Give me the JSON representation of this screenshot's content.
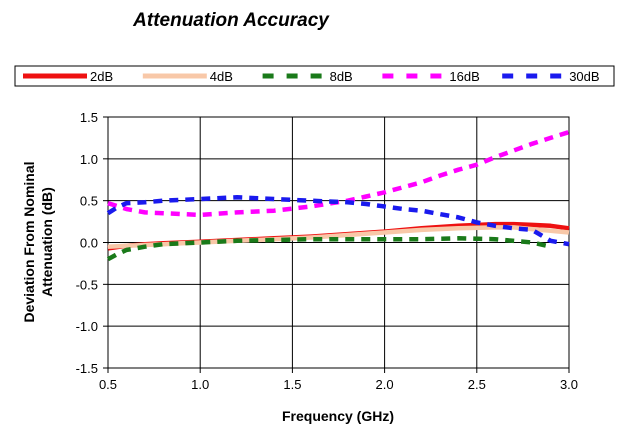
{
  "chart_data": {
    "type": "line",
    "title": "Attenuation Accuracy",
    "xlabel": "Frequency (GHz)",
    "ylabel_lines": [
      "Deviation From Nominal",
      "Attenuation (dB)"
    ],
    "xlim": [
      0.5,
      3.0
    ],
    "ylim": [
      -1.5,
      1.5
    ],
    "x_ticks": [
      "0.5",
      "1.0",
      "1.5",
      "2.0",
      "2.5",
      "3.0"
    ],
    "y_ticks": [
      "1.5",
      "1.0",
      "0.5",
      "0.0",
      "-0.5",
      "-1.0",
      "-1.5"
    ],
    "grid": true,
    "legend_position": "top",
    "series": [
      {
        "name": "2dB",
        "color": "#ee1111",
        "dash": "solid",
        "x": [
          0.5,
          0.6,
          0.7,
          0.8,
          0.9,
          1.0,
          1.2,
          1.4,
          1.6,
          1.8,
          2.0,
          2.2,
          2.4,
          2.6,
          2.7,
          2.8,
          2.9,
          3.0
        ],
        "y": [
          -0.07,
          -0.04,
          -0.02,
          -0.01,
          0.0,
          0.01,
          0.03,
          0.05,
          0.07,
          0.1,
          0.13,
          0.17,
          0.2,
          0.22,
          0.22,
          0.21,
          0.2,
          0.17
        ]
      },
      {
        "name": "4dB",
        "color": "#f8c8a8",
        "dash": "solid",
        "x": [
          0.5,
          0.6,
          0.7,
          0.8,
          0.9,
          1.0,
          1.2,
          1.4,
          1.6,
          1.8,
          2.0,
          2.2,
          2.4,
          2.6,
          2.7,
          2.8,
          2.9,
          3.0
        ],
        "y": [
          -0.05,
          -0.04,
          -0.03,
          -0.02,
          -0.01,
          0.0,
          0.02,
          0.04,
          0.06,
          0.09,
          0.12,
          0.15,
          0.17,
          0.18,
          0.18,
          0.16,
          0.14,
          0.12
        ]
      },
      {
        "name": "8dB",
        "color": "#1a7a1a",
        "dash": "dashed",
        "x": [
          0.5,
          0.55,
          0.6,
          0.7,
          0.8,
          1.0,
          1.2,
          1.4,
          1.6,
          1.8,
          2.0,
          2.2,
          2.4,
          2.6,
          2.8,
          2.9
        ],
        "y": [
          -0.2,
          -0.14,
          -0.09,
          -0.05,
          -0.02,
          0.0,
          0.02,
          0.03,
          0.04,
          0.04,
          0.04,
          0.04,
          0.05,
          0.04,
          0.0,
          -0.05
        ]
      },
      {
        "name": "16dB",
        "color": "#ff00ff",
        "dash": "dashed",
        "x": [
          0.5,
          0.6,
          0.7,
          0.8,
          1.0,
          1.2,
          1.4,
          1.6,
          1.8,
          1.9,
          2.0,
          2.1,
          2.2,
          2.3,
          2.4,
          2.5,
          2.6,
          2.7,
          2.8,
          2.9,
          3.0
        ],
        "y": [
          0.47,
          0.4,
          0.36,
          0.35,
          0.33,
          0.36,
          0.38,
          0.43,
          0.5,
          0.55,
          0.6,
          0.66,
          0.72,
          0.8,
          0.87,
          0.93,
          1.02,
          1.1,
          1.18,
          1.25,
          1.32
        ]
      },
      {
        "name": "30dB",
        "color": "#1a1aee",
        "dash": "dashed",
        "x": [
          0.5,
          0.55,
          0.6,
          0.7,
          0.8,
          1.0,
          1.2,
          1.4,
          1.6,
          1.8,
          1.9,
          2.0,
          2.1,
          2.2,
          2.3,
          2.4,
          2.5,
          2.6,
          2.7,
          2.8,
          2.9,
          3.0
        ],
        "y": [
          0.35,
          0.42,
          0.47,
          0.48,
          0.5,
          0.52,
          0.54,
          0.52,
          0.5,
          0.48,
          0.46,
          0.43,
          0.4,
          0.38,
          0.34,
          0.3,
          0.24,
          0.2,
          0.17,
          0.15,
          0.02,
          -0.02
        ]
      }
    ]
  }
}
